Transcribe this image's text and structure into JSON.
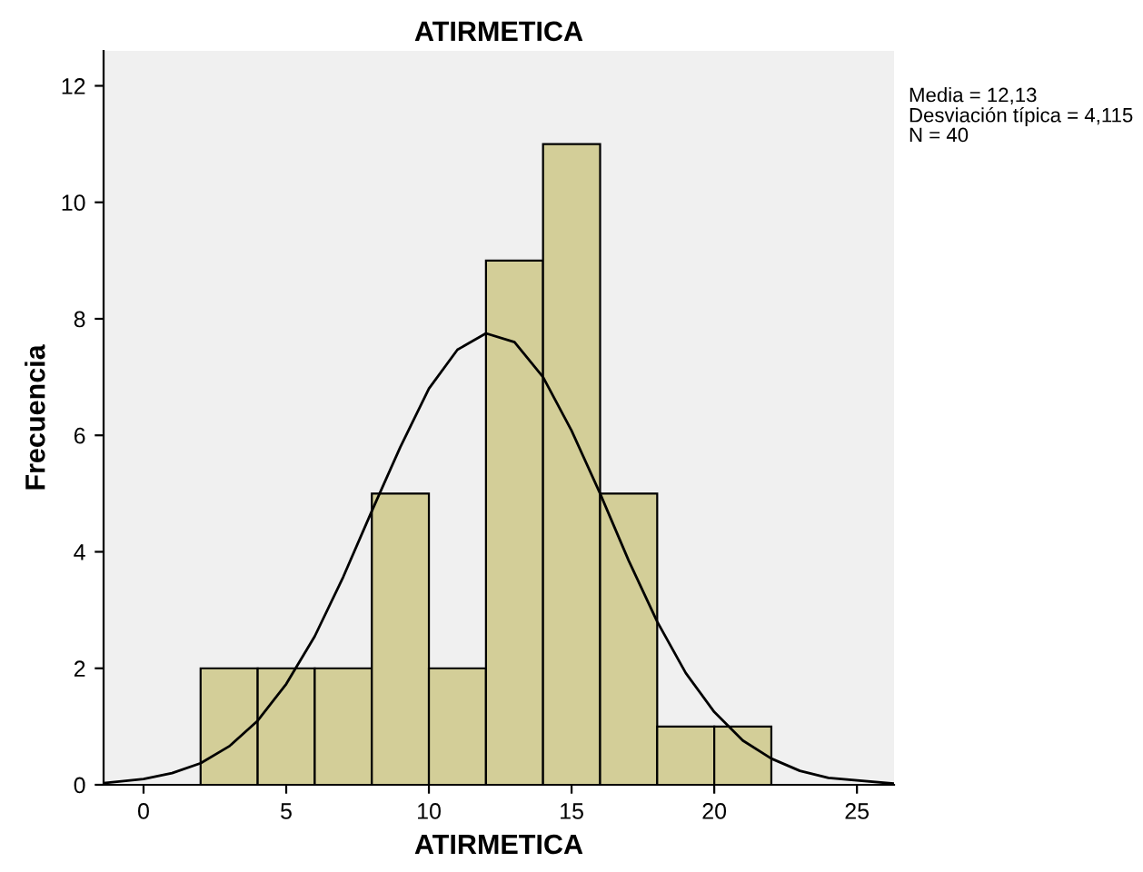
{
  "chart_data": {
    "type": "histogram",
    "title": "ATIRMETICA",
    "xlabel": "ATIRMETICA",
    "ylabel": "Frecuencia",
    "bins": [
      2,
      4,
      6,
      8,
      10,
      12,
      14,
      16,
      18,
      20,
      22
    ],
    "values": [
      2,
      2,
      2,
      5,
      2,
      9,
      11,
      5,
      1,
      1
    ],
    "color": "#d3ce98",
    "series": [
      {
        "type": "line",
        "color": "#000000",
        "x": [
          -1.4,
          0,
          1,
          2,
          3,
          4,
          5,
          6,
          7,
          8,
          9,
          10,
          11,
          12,
          13,
          14,
          15,
          16,
          17,
          18,
          19,
          20,
          21,
          22,
          23,
          24,
          26.3
        ],
        "values": [
          0.03,
          0.1,
          0.2,
          0.37,
          0.66,
          1.1,
          1.73,
          2.55,
          3.57,
          4.7,
          5.8,
          6.8,
          7.47,
          7.75,
          7.6,
          7.0,
          6.08,
          5.0,
          3.85,
          2.8,
          1.92,
          1.25,
          0.76,
          0.45,
          0.24,
          0.12,
          0.02
        ]
      }
    ],
    "xlim": [
      -1.4,
      26.3
    ],
    "ylim": [
      0,
      12.6
    ],
    "xticks": [
      0,
      5,
      10,
      15,
      20,
      25
    ],
    "yticks": [
      0,
      2,
      4,
      6,
      8,
      10,
      12
    ],
    "grid": false,
    "annotations": [
      "Media = 12,13",
      "Desviación típica = 4,115",
      "N = 40"
    ]
  }
}
